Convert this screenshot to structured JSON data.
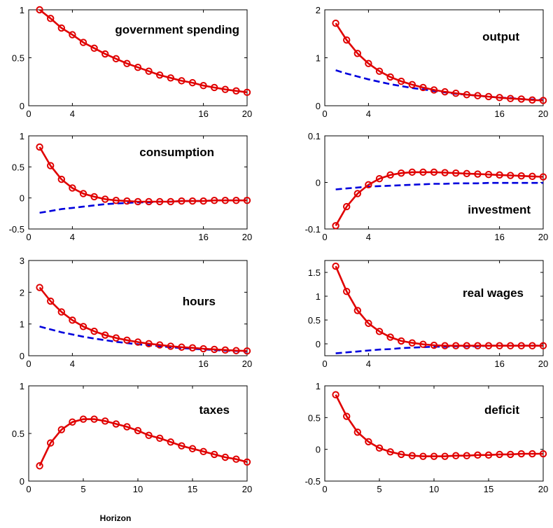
{
  "figure": {
    "xlabel": "Horizon"
  },
  "colors": {
    "red_series": "#e00000",
    "blue_series": "#0000dd",
    "axis": "#000000"
  },
  "chart_data": [
    {
      "type": "line",
      "title": "government spending",
      "xlim": [
        0,
        20
      ],
      "ylim": [
        0,
        1
      ],
      "xticks": [
        0,
        4,
        16,
        20
      ],
      "yticks": [
        0,
        0.5,
        1
      ],
      "xticklabels": [
        "0",
        "4",
        "16",
        "20"
      ],
      "yticklabels": [
        "0",
        "0.5",
        "1"
      ],
      "series": [
        {
          "color": "red",
          "markers": true,
          "x": [
            1,
            2,
            3,
            4,
            5,
            6,
            7,
            8,
            9,
            10,
            11,
            12,
            13,
            14,
            15,
            16,
            17,
            18,
            19,
            20
          ],
          "y": [
            1.0,
            0.91,
            0.81,
            0.74,
            0.66,
            0.6,
            0.54,
            0.49,
            0.44,
            0.4,
            0.36,
            0.32,
            0.29,
            0.26,
            0.24,
            0.21,
            0.19,
            0.17,
            0.155,
            0.14
          ]
        }
      ]
    },
    {
      "type": "line",
      "title": "output",
      "xlim": [
        0,
        20
      ],
      "ylim": [
        0,
        2
      ],
      "xticks": [
        0,
        4,
        16,
        20
      ],
      "yticks": [
        0,
        1,
        2
      ],
      "xticklabels": [
        "0",
        "4",
        "16",
        "20"
      ],
      "yticklabels": [
        "0",
        "1",
        "2"
      ],
      "series": [
        {
          "color": "red",
          "markers": true,
          "x": [
            1,
            2,
            3,
            4,
            5,
            6,
            7,
            8,
            9,
            10,
            11,
            12,
            13,
            14,
            15,
            16,
            17,
            18,
            19,
            20
          ],
          "y": [
            1.72,
            1.37,
            1.09,
            0.88,
            0.72,
            0.6,
            0.51,
            0.44,
            0.38,
            0.33,
            0.29,
            0.26,
            0.23,
            0.21,
            0.19,
            0.17,
            0.15,
            0.14,
            0.12,
            0.11
          ]
        },
        {
          "color": "blue",
          "markers": false,
          "x": [
            1,
            2,
            3,
            4,
            5,
            6,
            7,
            8,
            9,
            10,
            11,
            12,
            13,
            14,
            15,
            16,
            17,
            18,
            19,
            20
          ],
          "y": [
            0.74,
            0.67,
            0.61,
            0.55,
            0.5,
            0.45,
            0.41,
            0.37,
            0.34,
            0.31,
            0.28,
            0.25,
            0.23,
            0.21,
            0.19,
            0.17,
            0.16,
            0.14,
            0.13,
            0.12
          ]
        }
      ]
    },
    {
      "type": "line",
      "title": "consumption",
      "xlim": [
        0,
        20
      ],
      "ylim": [
        -0.5,
        1
      ],
      "xticks": [
        0,
        4,
        16,
        20
      ],
      "yticks": [
        -0.5,
        0,
        0.5,
        1
      ],
      "xticklabels": [
        "0",
        "4",
        "16",
        "20"
      ],
      "yticklabels": [
        "-0.5",
        "0",
        "0.5",
        "1"
      ],
      "series": [
        {
          "color": "red",
          "markers": true,
          "x": [
            1,
            2,
            3,
            4,
            5,
            6,
            7,
            8,
            9,
            10,
            11,
            12,
            13,
            14,
            15,
            16,
            17,
            18,
            19,
            20
          ],
          "y": [
            0.82,
            0.52,
            0.3,
            0.16,
            0.07,
            0.02,
            -0.02,
            -0.04,
            -0.05,
            -0.06,
            -0.06,
            -0.06,
            -0.06,
            -0.05,
            -0.05,
            -0.05,
            -0.04,
            -0.04,
            -0.04,
            -0.04
          ]
        },
        {
          "color": "blue",
          "markers": false,
          "x": [
            1,
            2,
            3,
            4,
            5,
            6,
            7,
            8,
            9,
            10,
            11,
            12,
            13,
            14,
            15,
            16,
            17,
            18,
            19,
            20
          ],
          "y": [
            -0.24,
            -0.21,
            -0.18,
            -0.16,
            -0.14,
            -0.12,
            -0.1,
            -0.09,
            -0.08,
            -0.07,
            -0.07,
            -0.06,
            -0.06,
            -0.05,
            -0.05,
            -0.05,
            -0.04,
            -0.04,
            -0.04,
            -0.04
          ]
        }
      ]
    },
    {
      "type": "line",
      "title": "investment",
      "xlim": [
        0,
        20
      ],
      "ylim": [
        -0.1,
        0.1
      ],
      "xticks": [
        0,
        4,
        16,
        20
      ],
      "yticks": [
        -0.1,
        0,
        0.1
      ],
      "xticklabels": [
        "0",
        "4",
        "16",
        "20"
      ],
      "yticklabels": [
        "-0.1",
        "0",
        "0.1"
      ],
      "series": [
        {
          "color": "red",
          "markers": true,
          "x": [
            1,
            2,
            3,
            4,
            5,
            6,
            7,
            8,
            9,
            10,
            11,
            12,
            13,
            14,
            15,
            16,
            17,
            18,
            19,
            20
          ],
          "y": [
            -0.093,
            -0.052,
            -0.024,
            -0.005,
            0.008,
            0.016,
            0.02,
            0.022,
            0.022,
            0.022,
            0.021,
            0.02,
            0.019,
            0.018,
            0.017,
            0.016,
            0.015,
            0.014,
            0.013,
            0.012
          ]
        },
        {
          "color": "blue",
          "markers": false,
          "x": [
            1,
            2,
            3,
            4,
            5,
            6,
            7,
            8,
            9,
            10,
            11,
            12,
            13,
            14,
            15,
            16,
            17,
            18,
            19,
            20
          ],
          "y": [
            -0.015,
            -0.013,
            -0.011,
            -0.009,
            -0.008,
            -0.007,
            -0.006,
            -0.005,
            -0.004,
            -0.003,
            -0.003,
            -0.002,
            -0.002,
            -0.002,
            -0.001,
            -0.001,
            -0.001,
            -0.001,
            -0.001,
            -0.001
          ]
        }
      ]
    },
    {
      "type": "line",
      "title": "hours",
      "xlim": [
        0,
        20
      ],
      "ylim": [
        0,
        3
      ],
      "xticks": [
        0,
        4,
        16,
        20
      ],
      "yticks": [
        0,
        1,
        2,
        3
      ],
      "xticklabels": [
        "0",
        "4",
        "16",
        "20"
      ],
      "yticklabels": [
        "0",
        "1",
        "2",
        "3"
      ],
      "series": [
        {
          "color": "red",
          "markers": true,
          "x": [
            1,
            2,
            3,
            4,
            5,
            6,
            7,
            8,
            9,
            10,
            11,
            12,
            13,
            14,
            15,
            16,
            17,
            18,
            19,
            20
          ],
          "y": [
            2.15,
            1.72,
            1.38,
            1.12,
            0.92,
            0.77,
            0.65,
            0.56,
            0.49,
            0.43,
            0.38,
            0.34,
            0.3,
            0.27,
            0.25,
            0.22,
            0.2,
            0.18,
            0.16,
            0.15
          ]
        },
        {
          "color": "blue",
          "markers": false,
          "x": [
            1,
            2,
            3,
            4,
            5,
            6,
            7,
            8,
            9,
            10,
            11,
            12,
            13,
            14,
            15,
            16,
            17,
            18,
            19,
            20
          ],
          "y": [
            0.92,
            0.83,
            0.74,
            0.67,
            0.6,
            0.54,
            0.49,
            0.44,
            0.4,
            0.36,
            0.33,
            0.3,
            0.27,
            0.24,
            0.22,
            0.2,
            0.18,
            0.16,
            0.15,
            0.13
          ]
        }
      ]
    },
    {
      "type": "line",
      "title": "real wages",
      "xlim": [
        0,
        20
      ],
      "ylim": [
        -0.25,
        1.75
      ],
      "xticks": [
        0,
        4,
        16,
        20
      ],
      "yticks": [
        0,
        0.5,
        1,
        1.5
      ],
      "xticklabels": [
        "0",
        "4",
        "16",
        "20"
      ],
      "yticklabels": [
        "0",
        "0.5",
        "1",
        "1.5"
      ],
      "series": [
        {
          "color": "red",
          "markers": true,
          "x": [
            1,
            2,
            3,
            4,
            5,
            6,
            7,
            8,
            9,
            10,
            11,
            12,
            13,
            14,
            15,
            16,
            17,
            18,
            19,
            20
          ],
          "y": [
            1.63,
            1.1,
            0.7,
            0.43,
            0.26,
            0.14,
            0.06,
            0.02,
            -0.01,
            -0.03,
            -0.04,
            -0.04,
            -0.04,
            -0.04,
            -0.04,
            -0.04,
            -0.04,
            -0.04,
            -0.04,
            -0.04
          ]
        },
        {
          "color": "blue",
          "markers": false,
          "x": [
            1,
            2,
            3,
            4,
            5,
            6,
            7,
            8,
            9,
            10,
            11,
            12,
            13,
            14,
            15,
            16,
            17,
            18,
            19,
            20
          ],
          "y": [
            -0.2,
            -0.18,
            -0.16,
            -0.14,
            -0.12,
            -0.11,
            -0.09,
            -0.08,
            -0.07,
            -0.06,
            -0.06,
            -0.05,
            -0.05,
            -0.05,
            -0.04,
            -0.04,
            -0.04,
            -0.04,
            -0.04,
            -0.04
          ]
        }
      ]
    },
    {
      "type": "line",
      "title": "taxes",
      "xlim": [
        0,
        20
      ],
      "ylim": [
        0,
        1
      ],
      "xticks": [
        0,
        5,
        10,
        15,
        20
      ],
      "yticks": [
        0,
        0.5,
        1
      ],
      "xticklabels": [
        "0",
        "5",
        "10",
        "15",
        "20"
      ],
      "yticklabels": [
        "0",
        "0.5",
        "1"
      ],
      "series": [
        {
          "color": "red",
          "markers": true,
          "x": [
            1,
            2,
            3,
            4,
            5,
            6,
            7,
            8,
            9,
            10,
            11,
            12,
            13,
            14,
            15,
            16,
            17,
            18,
            19,
            20
          ],
          "y": [
            0.16,
            0.4,
            0.54,
            0.62,
            0.65,
            0.65,
            0.63,
            0.6,
            0.57,
            0.53,
            0.48,
            0.45,
            0.41,
            0.37,
            0.34,
            0.31,
            0.28,
            0.25,
            0.23,
            0.2
          ]
        }
      ]
    },
    {
      "type": "line",
      "title": "deficit",
      "xlim": [
        0,
        20
      ],
      "ylim": [
        -0.5,
        1
      ],
      "xticks": [
        0,
        5,
        10,
        15,
        20
      ],
      "yticks": [
        -0.5,
        0,
        0.5,
        1
      ],
      "xticklabels": [
        "0",
        "5",
        "10",
        "15",
        "20"
      ],
      "yticklabels": [
        "-0.5",
        "0",
        "0.5",
        "1"
      ],
      "series": [
        {
          "color": "red",
          "markers": true,
          "x": [
            1,
            2,
            3,
            4,
            5,
            6,
            7,
            8,
            9,
            10,
            11,
            12,
            13,
            14,
            15,
            16,
            17,
            18,
            19,
            20
          ],
          "y": [
            0.86,
            0.52,
            0.27,
            0.12,
            0.02,
            -0.04,
            -0.08,
            -0.1,
            -0.11,
            -0.11,
            -0.11,
            -0.1,
            -0.1,
            -0.09,
            -0.09,
            -0.08,
            -0.08,
            -0.07,
            -0.07,
            -0.07
          ]
        }
      ]
    }
  ]
}
